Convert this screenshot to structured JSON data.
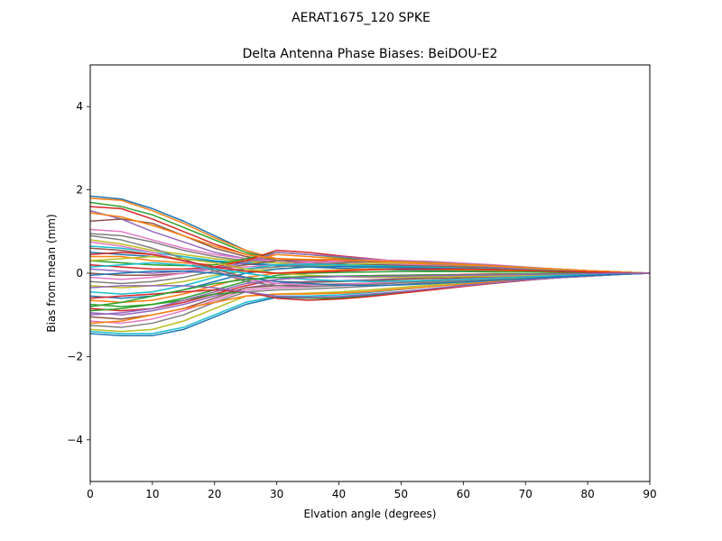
{
  "figure": {
    "suptitle": "AERAT1675_120   SPKE"
  },
  "chart_data": {
    "type": "line",
    "title": "Delta Antenna Phase Biases: BeiDOU-E2",
    "xlabel": "Elvation angle (degrees)",
    "ylabel": "Bias from mean (mm)",
    "xlim": [
      0,
      90
    ],
    "ylim": [
      -5,
      5
    ],
    "xticks": [
      0,
      10,
      20,
      30,
      40,
      50,
      60,
      70,
      80,
      90
    ],
    "yticks": [
      -4,
      -2,
      0,
      2,
      4
    ],
    "ytick_labels": [
      "−4",
      "−2",
      "0",
      "2",
      "4"
    ],
    "grid": false,
    "legend": "none",
    "x": [
      0,
      5,
      10,
      15,
      20,
      25,
      30,
      35,
      40,
      45,
      50,
      55,
      60,
      65,
      70,
      75,
      80,
      85,
      90
    ],
    "colors": [
      "#1f77b4",
      "#ff7f0e",
      "#2ca02c",
      "#d62728",
      "#9467bd",
      "#8c564b",
      "#e377c2",
      "#7f7f7f",
      "#bcbd22",
      "#17becf"
    ],
    "series": [
      {
        "values": [
          1.85,
          1.78,
          1.55,
          1.25,
          0.9,
          0.55,
          0.3,
          0.25,
          0.22,
          0.2,
          0.2,
          0.18,
          0.15,
          0.12,
          0.1,
          0.08,
          0.05,
          0.02,
          0
        ]
      },
      {
        "values": [
          1.8,
          1.75,
          1.5,
          1.2,
          0.85,
          0.55,
          0.35,
          0.3,
          0.28,
          0.25,
          0.22,
          0.2,
          0.18,
          0.15,
          0.12,
          0.09,
          0.06,
          0.03,
          0
        ]
      },
      {
        "values": [
          1.7,
          1.6,
          1.4,
          1.1,
          0.8,
          0.5,
          0.3,
          0.25,
          0.22,
          0.2,
          0.18,
          0.16,
          0.14,
          0.12,
          0.1,
          0.07,
          0.05,
          0.02,
          0
        ]
      },
      {
        "values": [
          1.6,
          1.55,
          1.3,
          1.0,
          0.7,
          0.45,
          0.35,
          0.32,
          0.3,
          0.27,
          0.24,
          0.22,
          0.2,
          0.17,
          0.13,
          0.1,
          0.06,
          0.03,
          0
        ]
      },
      {
        "values": [
          1.5,
          1.3,
          1.0,
          0.75,
          0.5,
          0.35,
          0.25,
          0.2,
          0.18,
          0.16,
          0.15,
          0.14,
          0.12,
          0.1,
          0.08,
          0.06,
          0.04,
          0.02,
          0
        ]
      },
      {
        "values": [
          1.25,
          1.3,
          1.2,
          0.9,
          0.6,
          0.4,
          0.3,
          0.25,
          0.22,
          0.2,
          0.18,
          0.16,
          0.14,
          0.12,
          0.1,
          0.07,
          0.05,
          0.02,
          0
        ]
      },
      {
        "values": [
          1.05,
          1.0,
          0.8,
          0.6,
          0.45,
          0.35,
          0.3,
          0.28,
          0.26,
          0.24,
          0.22,
          0.2,
          0.18,
          0.15,
          0.12,
          0.09,
          0.06,
          0.03,
          0
        ]
      },
      {
        "values": [
          0.95,
          0.9,
          0.75,
          0.55,
          0.4,
          0.3,
          0.25,
          0.22,
          0.2,
          0.18,
          0.16,
          0.14,
          0.12,
          0.1,
          0.08,
          0.06,
          0.04,
          0.02,
          0
        ]
      },
      {
        "values": [
          0.8,
          0.7,
          0.55,
          0.45,
          0.35,
          0.28,
          0.25,
          0.22,
          0.2,
          0.18,
          0.15,
          0.13,
          0.11,
          0.09,
          0.07,
          0.05,
          0.03,
          0.01,
          0
        ]
      },
      {
        "values": [
          0.65,
          0.6,
          0.5,
          0.4,
          0.3,
          0.25,
          0.2,
          0.18,
          0.16,
          0.14,
          0.12,
          0.1,
          0.09,
          0.07,
          0.05,
          0.04,
          0.02,
          0.01,
          0
        ]
      },
      {
        "values": [
          0.5,
          0.45,
          0.4,
          0.35,
          0.28,
          0.22,
          0.18,
          0.15,
          0.12,
          0.1,
          0.08,
          0.07,
          0.06,
          0.05,
          0.04,
          0.03,
          0.02,
          0.01,
          0
        ]
      },
      {
        "values": [
          0.4,
          0.4,
          0.3,
          0.25,
          0.2,
          0.3,
          0.45,
          0.4,
          0.35,
          0.3,
          0.25,
          0.22,
          0.18,
          0.15,
          0.12,
          0.09,
          0.06,
          0.03,
          0
        ]
      },
      {
        "values": [
          0.3,
          0.25,
          0.2,
          0.18,
          0.2,
          0.35,
          0.5,
          0.45,
          0.38,
          0.32,
          0.27,
          0.23,
          0.19,
          0.15,
          0.12,
          0.09,
          0.06,
          0.03,
          0
        ]
      },
      {
        "values": [
          0.2,
          0.15,
          0.1,
          0.1,
          0.15,
          0.3,
          0.55,
          0.5,
          0.42,
          0.35,
          0.28,
          0.24,
          0.2,
          0.16,
          0.12,
          0.09,
          0.06,
          0.03,
          0
        ]
      },
      {
        "values": [
          0.1,
          0.05,
          0.0,
          0.05,
          0.12,
          0.25,
          0.5,
          0.45,
          0.4,
          0.34,
          0.28,
          0.23,
          0.19,
          0.15,
          0.11,
          0.08,
          0.05,
          0.02,
          0
        ]
      },
      {
        "values": [
          0.0,
          -0.05,
          -0.05,
          0.0,
          0.1,
          0.2,
          0.3,
          0.32,
          0.33,
          0.32,
          0.3,
          0.27,
          0.23,
          0.18,
          0.13,
          0.09,
          0.06,
          0.03,
          0
        ]
      },
      {
        "values": [
          -0.1,
          -0.15,
          -0.1,
          0.0,
          0.1,
          0.15,
          0.2,
          0.25,
          0.3,
          0.32,
          0.3,
          0.28,
          0.24,
          0.2,
          0.15,
          0.1,
          0.06,
          0.03,
          0
        ]
      },
      {
        "values": [
          -0.2,
          -0.25,
          -0.2,
          -0.1,
          0.05,
          0.1,
          0.15,
          0.2,
          0.25,
          0.28,
          0.28,
          0.26,
          0.22,
          0.18,
          0.14,
          0.1,
          0.06,
          0.03,
          0
        ]
      },
      {
        "values": [
          -0.3,
          -0.35,
          -0.3,
          -0.2,
          -0.05,
          0.05,
          0.1,
          0.15,
          0.2,
          0.24,
          0.25,
          0.24,
          0.2,
          0.17,
          0.13,
          0.09,
          0.06,
          0.03,
          0
        ]
      },
      {
        "values": [
          -0.45,
          -0.5,
          -0.45,
          -0.3,
          -0.1,
          0.1,
          0.2,
          0.22,
          0.2,
          0.18,
          0.16,
          0.14,
          0.12,
          0.1,
          0.08,
          0.06,
          0.04,
          0.02,
          0
        ]
      },
      {
        "values": [
          -0.55,
          -0.6,
          -0.55,
          -0.4,
          -0.2,
          0.0,
          0.1,
          0.15,
          0.16,
          0.15,
          0.14,
          0.12,
          0.1,
          0.08,
          0.06,
          0.05,
          0.03,
          0.01,
          0
        ]
      },
      {
        "values": [
          -0.65,
          -0.7,
          -0.65,
          -0.5,
          -0.3,
          -0.1,
          0.0,
          0.05,
          0.08,
          0.1,
          0.1,
          0.09,
          0.08,
          0.07,
          0.05,
          0.04,
          0.02,
          0.01,
          0
        ]
      },
      {
        "values": [
          -0.75,
          -0.8,
          -0.75,
          -0.6,
          -0.4,
          -0.2,
          -0.05,
          0.0,
          0.02,
          0.03,
          0.04,
          0.04,
          0.04,
          0.03,
          0.03,
          0.02,
          0.01,
          0.0,
          0
        ]
      },
      {
        "values": [
          -0.85,
          -0.9,
          -0.85,
          -0.7,
          -0.5,
          -0.3,
          -0.15,
          -0.1,
          -0.08,
          -0.06,
          -0.05,
          -0.04,
          -0.03,
          -0.02,
          -0.02,
          -0.01,
          -0.01,
          0.0,
          0
        ]
      },
      {
        "values": [
          -0.95,
          -1.0,
          -0.9,
          -0.75,
          -0.55,
          -0.35,
          -0.25,
          -0.2,
          -0.18,
          -0.16,
          -0.13,
          -0.1,
          -0.08,
          -0.06,
          -0.05,
          -0.03,
          -0.02,
          -0.01,
          0
        ]
      },
      {
        "values": [
          -1.05,
          -1.1,
          -1.0,
          -0.85,
          -0.6,
          -0.35,
          -0.3,
          -0.28,
          -0.26,
          -0.24,
          -0.2,
          -0.16,
          -0.13,
          -0.1,
          -0.08,
          -0.06,
          -0.04,
          -0.02,
          0
        ]
      },
      {
        "values": [
          -1.15,
          -1.2,
          -1.1,
          -0.9,
          -0.65,
          -0.4,
          -0.35,
          -0.33,
          -0.3,
          -0.27,
          -0.23,
          -0.19,
          -0.15,
          -0.12,
          -0.09,
          -0.07,
          -0.04,
          -0.02,
          0
        ]
      },
      {
        "values": [
          -1.25,
          -1.3,
          -1.2,
          -1.0,
          -0.7,
          -0.45,
          -0.4,
          -0.38,
          -0.35,
          -0.31,
          -0.27,
          -0.22,
          -0.18,
          -0.14,
          -0.1,
          -0.07,
          -0.05,
          -0.02,
          0
        ]
      },
      {
        "values": [
          -1.35,
          -1.4,
          -1.35,
          -1.15,
          -0.85,
          -0.55,
          -0.5,
          -0.48,
          -0.45,
          -0.4,
          -0.34,
          -0.28,
          -0.22,
          -0.17,
          -0.12,
          -0.08,
          -0.05,
          -0.02,
          0
        ]
      },
      {
        "values": [
          -1.4,
          -1.45,
          -1.45,
          -1.3,
          -1.0,
          -0.7,
          -0.55,
          -0.55,
          -0.52,
          -0.46,
          -0.39,
          -0.32,
          -0.25,
          -0.19,
          -0.14,
          -0.09,
          -0.06,
          -0.03,
          0
        ]
      },
      {
        "values": [
          -1.45,
          -1.5,
          -1.5,
          -1.35,
          -1.05,
          -0.75,
          -0.58,
          -0.6,
          -0.58,
          -0.52,
          -0.45,
          -0.37,
          -0.29,
          -0.22,
          -0.16,
          -0.11,
          -0.07,
          -0.03,
          0
        ]
      },
      {
        "values": [
          -1.2,
          -1.15,
          -1.0,
          -0.85,
          -0.7,
          -0.55,
          -0.5,
          -0.5,
          -0.48,
          -0.44,
          -0.38,
          -0.32,
          -0.26,
          -0.2,
          -0.15,
          -0.1,
          -0.06,
          -0.03,
          0
        ]
      },
      {
        "values": [
          -0.9,
          -0.85,
          -0.75,
          -0.65,
          -0.5,
          -0.45,
          -0.55,
          -0.6,
          -0.6,
          -0.55,
          -0.47,
          -0.39,
          -0.31,
          -0.24,
          -0.17,
          -0.11,
          -0.07,
          -0.03,
          0
        ]
      },
      {
        "values": [
          -0.6,
          -0.55,
          -0.5,
          -0.45,
          -0.4,
          -0.45,
          -0.6,
          -0.65,
          -0.62,
          -0.56,
          -0.48,
          -0.4,
          -0.32,
          -0.24,
          -0.17,
          -0.11,
          -0.07,
          -0.03,
          0
        ]
      },
      {
        "values": [
          -0.35,
          -0.3,
          -0.3,
          -0.3,
          -0.35,
          -0.45,
          -0.55,
          -0.58,
          -0.56,
          -0.5,
          -0.44,
          -0.37,
          -0.3,
          -0.23,
          -0.16,
          -0.11,
          -0.07,
          -0.03,
          0
        ]
      },
      {
        "values": [
          0.6,
          0.55,
          0.45,
          0.3,
          0.1,
          -0.1,
          -0.2,
          -0.22,
          -0.2,
          -0.18,
          -0.15,
          -0.12,
          -0.1,
          -0.08,
          -0.06,
          -0.04,
          -0.03,
          -0.01,
          0
        ]
      },
      {
        "values": [
          0.75,
          0.65,
          0.5,
          0.3,
          0.05,
          -0.15,
          -0.25,
          -0.28,
          -0.27,
          -0.24,
          -0.2,
          -0.17,
          -0.14,
          -0.11,
          -0.08,
          -0.06,
          -0.04,
          -0.02,
          0
        ]
      },
      {
        "values": [
          0.9,
          0.8,
          0.6,
          0.35,
          0.05,
          -0.2,
          -0.3,
          -0.32,
          -0.3,
          -0.27,
          -0.23,
          -0.19,
          -0.15,
          -0.12,
          -0.09,
          -0.06,
          -0.04,
          -0.02,
          0
        ]
      },
      {
        "values": [
          0.3,
          0.35,
          0.4,
          0.35,
          0.25,
          0.1,
          0.0,
          -0.05,
          -0.08,
          -0.1,
          -0.1,
          -0.09,
          -0.08,
          -0.07,
          -0.05,
          -0.04,
          -0.02,
          -0.01,
          0
        ]
      },
      {
        "values": [
          0.15,
          0.2,
          0.25,
          0.2,
          0.1,
          0.0,
          -0.1,
          -0.15,
          -0.18,
          -0.2,
          -0.19,
          -0.17,
          -0.15,
          -0.12,
          -0.09,
          -0.06,
          -0.04,
          -0.02,
          0
        ]
      },
      {
        "values": [
          -0.05,
          0.0,
          0.05,
          0.05,
          0.0,
          -0.1,
          -0.2,
          -0.25,
          -0.28,
          -0.3,
          -0.28,
          -0.25,
          -0.21,
          -0.17,
          -0.13,
          -0.09,
          -0.06,
          -0.03,
          0
        ]
      },
      {
        "values": [
          1.45,
          1.35,
          1.15,
          0.9,
          0.65,
          0.45,
          0.35,
          0.33,
          0.32,
          0.3,
          0.27,
          0.24,
          0.21,
          0.17,
          0.13,
          0.1,
          0.06,
          0.03,
          0
        ]
      },
      {
        "values": [
          -0.8,
          -0.7,
          -0.55,
          -0.4,
          -0.25,
          -0.15,
          -0.1,
          -0.08,
          -0.07,
          -0.06,
          -0.05,
          -0.04,
          -0.04,
          -0.03,
          -0.02,
          -0.02,
          -0.01,
          0.0,
          0
        ]
      },
      {
        "values": [
          0.45,
          0.5,
          0.45,
          0.3,
          0.15,
          0.05,
          0.0,
          0.02,
          0.05,
          0.08,
          0.1,
          0.1,
          0.1,
          0.09,
          0.07,
          0.05,
          0.03,
          0.01,
          0
        ]
      },
      {
        "values": [
          -1.0,
          -0.95,
          -0.85,
          -0.65,
          -0.45,
          -0.25,
          -0.15,
          -0.1,
          -0.08,
          -0.08,
          -0.07,
          -0.06,
          -0.05,
          -0.04,
          -0.03,
          -0.02,
          -0.01,
          0.0,
          0
        ]
      }
    ]
  }
}
